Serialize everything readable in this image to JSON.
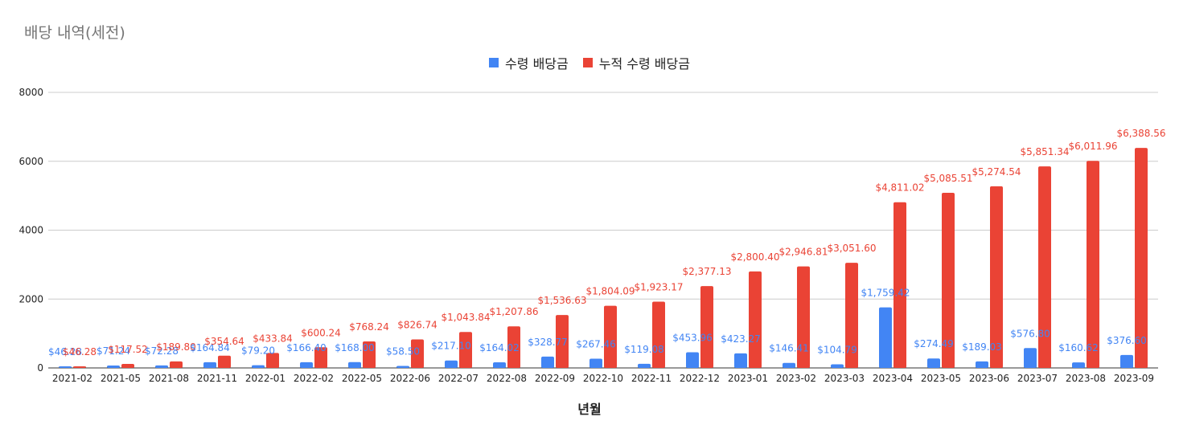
{
  "chart_data": {
    "type": "bar",
    "title": "배당 내역(세전)",
    "xlabel": "년월",
    "ylabel": "",
    "ylim": [
      0,
      8000
    ],
    "yticks": [
      0,
      2000,
      4000,
      6000,
      8000
    ],
    "grid": true,
    "legend_position": "top",
    "categories": [
      "2021-02",
      "2021-05",
      "2021-08",
      "2021-11",
      "2022-01",
      "2022-02",
      "2022-05",
      "2022-06",
      "2022-07",
      "2022-08",
      "2022-09",
      "2022-10",
      "2022-11",
      "2022-12",
      "2023-01",
      "2023-02",
      "2023-03",
      "2023-04",
      "2023-05",
      "2023-06",
      "2023-07",
      "2023-08",
      "2023-09"
    ],
    "series": [
      {
        "name": "수령 배당금",
        "color": "#4285f4",
        "values": [
          46.28,
          71.24,
          72.28,
          164.84,
          79.2,
          166.4,
          168.0,
          58.5,
          217.1,
          164.02,
          328.77,
          267.46,
          119.08,
          453.96,
          423.27,
          146.41,
          104.79,
          1759.42,
          274.49,
          189.03,
          576.8,
          160.62,
          376.6
        ],
        "labels": [
          "$46.28",
          "$71.24",
          "$72.28",
          "$164.84",
          "$79.20",
          "$166.40",
          "$168.00",
          "$58.50",
          "$217.10",
          "$164.02",
          "$328.77",
          "$267.46",
          "$119.08",
          "$453.96",
          "$423.27",
          "$146.41",
          "$104.79",
          "$1,759.42",
          "$274.49",
          "$189.03",
          "$576.80",
          "$160.62",
          "$376.60"
        ]
      },
      {
        "name": "누적 수령 배당금",
        "color": "#ea4335",
        "values": [
          46.28,
          117.52,
          189.8,
          354.64,
          433.84,
          600.24,
          768.24,
          826.74,
          1043.84,
          1207.86,
          1536.63,
          1804.09,
          1923.17,
          2377.13,
          2800.4,
          2946.81,
          3051.6,
          4811.02,
          5085.51,
          5274.54,
          5851.34,
          6011.96,
          6388.56
        ],
        "labels": [
          "$46.28",
          "$117.52",
          "$189.80",
          "$354.64",
          "$433.84",
          "$600.24",
          "$768.24",
          "$826.74",
          "$1,043.84",
          "$1,207.86",
          "$1,536.63",
          "$1,804.09",
          "$1,923.17",
          "$2,377.13",
          "$2,800.40",
          "$2,946.81",
          "$3,051.60",
          "$4,811.02",
          "$5,085.51",
          "$5,274.54",
          "$5,851.34",
          "$6,011.96",
          "$6,388.56"
        ]
      }
    ]
  }
}
